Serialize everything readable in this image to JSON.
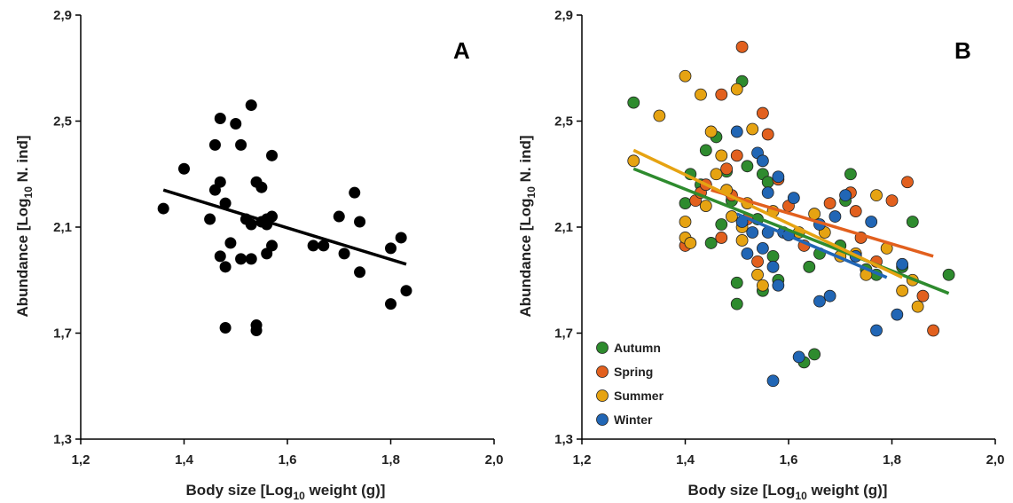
{
  "chart_data": [
    {
      "type": "scatter",
      "panel_label": "A",
      "xlabel_main": "Body size [Log",
      "xlabel_sub": "10",
      "xlabel_end": " weight (g)]",
      "ylabel_main": "Abundance [Log",
      "ylabel_sub": "10",
      "ylabel_end": " N. ind]",
      "xlim": [
        1.2,
        2.0
      ],
      "ylim": [
        1.3,
        2.9
      ],
      "x_ticks": [
        "1,2",
        "1,4",
        "1,6",
        "1,8",
        "2,0"
      ],
      "y_ticks": [
        "1,3",
        "1,7",
        "2,1",
        "2,5",
        "2,9"
      ],
      "series": [
        {
          "color": "#000000",
          "points": [
            [
              1.36,
              2.17
            ],
            [
              1.4,
              2.32
            ],
            [
              1.45,
              2.13
            ],
            [
              1.46,
              2.24
            ],
            [
              1.46,
              2.41
            ],
            [
              1.47,
              2.51
            ],
            [
              1.47,
              2.27
            ],
            [
              1.48,
              2.19
            ],
            [
              1.47,
              1.99
            ],
            [
              1.48,
              1.95
            ],
            [
              1.48,
              1.72
            ],
            [
              1.49,
              2.04
            ],
            [
              1.5,
              2.49
            ],
            [
              1.51,
              2.41
            ],
            [
              1.51,
              1.98
            ],
            [
              1.52,
              2.13
            ],
            [
              1.53,
              2.11
            ],
            [
              1.53,
              2.56
            ],
            [
              1.53,
              1.98
            ],
            [
              1.54,
              2.27
            ],
            [
              1.54,
              1.73
            ],
            [
              1.54,
              1.71
            ],
            [
              1.55,
              2.12
            ],
            [
              1.55,
              2.25
            ],
            [
              1.56,
              2.0
            ],
            [
              1.56,
              2.13
            ],
            [
              1.57,
              2.37
            ],
            [
              1.56,
              2.11
            ],
            [
              1.57,
              2.03
            ],
            [
              1.57,
              2.14
            ],
            [
              1.65,
              2.03
            ],
            [
              1.67,
              2.03
            ],
            [
              1.7,
              2.14
            ],
            [
              1.71,
              2.0
            ],
            [
              1.73,
              2.23
            ],
            [
              1.74,
              2.12
            ],
            [
              1.74,
              1.93
            ],
            [
              1.8,
              2.02
            ],
            [
              1.8,
              1.81
            ],
            [
              1.82,
              2.06
            ],
            [
              1.83,
              1.86
            ]
          ],
          "trend": [
            [
              1.36,
              2.24
            ],
            [
              1.83,
              1.96
            ]
          ]
        }
      ]
    },
    {
      "type": "scatter",
      "panel_label": "B",
      "xlabel_main": "Body size [Log",
      "xlabel_sub": "10",
      "xlabel_end": " weight (g)]",
      "ylabel_main": "Abundance [Log",
      "ylabel_sub": "10",
      "ylabel_end": " N. ind]",
      "xlim": [
        1.2,
        2.0
      ],
      "ylim": [
        1.3,
        2.9
      ],
      "x_ticks": [
        "1,2",
        "1,4",
        "1,6",
        "1,8",
        "2,0"
      ],
      "y_ticks": [
        "1,3",
        "1,7",
        "2,1",
        "2,5",
        "2,9"
      ],
      "series": [
        {
          "name": "Autumn",
          "color": "#2e8b2e",
          "points": [
            [
              1.3,
              2.57
            ],
            [
              1.4,
              2.19
            ],
            [
              1.41,
              2.3
            ],
            [
              1.43,
              2.26
            ],
            [
              1.44,
              2.39
            ],
            [
              1.45,
              2.04
            ],
            [
              1.46,
              2.44
            ],
            [
              1.47,
              2.11
            ],
            [
              1.48,
              2.31
            ],
            [
              1.49,
              2.2
            ],
            [
              1.5,
              1.81
            ],
            [
              1.5,
              1.89
            ],
            [
              1.51,
              2.65
            ],
            [
              1.52,
              2.33
            ],
            [
              1.54,
              2.13
            ],
            [
              1.55,
              2.3
            ],
            [
              1.55,
              1.86
            ],
            [
              1.56,
              2.27
            ],
            [
              1.57,
              1.99
            ],
            [
              1.58,
              1.9
            ],
            [
              1.63,
              1.59
            ],
            [
              1.64,
              1.95
            ],
            [
              1.65,
              1.62
            ],
            [
              1.7,
              2.03
            ],
            [
              1.72,
              2.3
            ],
            [
              1.75,
              1.94
            ],
            [
              1.77,
              1.92
            ],
            [
              1.82,
              1.95
            ],
            [
              1.84,
              2.12
            ],
            [
              1.91,
              1.92
            ],
            [
              1.71,
              2.2
            ],
            [
              1.66,
              2.0
            ]
          ],
          "trend": [
            [
              1.3,
              2.32
            ],
            [
              1.91,
              1.85
            ]
          ]
        },
        {
          "name": "Spring",
          "color": "#e2601e",
          "points": [
            [
              1.4,
              2.03
            ],
            [
              1.42,
              2.2
            ],
            [
              1.43,
              2.23
            ],
            [
              1.44,
              2.26
            ],
            [
              1.47,
              2.06
            ],
            [
              1.47,
              2.6
            ],
            [
              1.48,
              2.32
            ],
            [
              1.49,
              2.22
            ],
            [
              1.5,
              2.37
            ],
            [
              1.51,
              2.78
            ],
            [
              1.52,
              2.13
            ],
            [
              1.54,
              1.97
            ],
            [
              1.55,
              2.53
            ],
            [
              1.56,
              2.45
            ],
            [
              1.58,
              2.28
            ],
            [
              1.6,
              2.18
            ],
            [
              1.63,
              2.03
            ],
            [
              1.68,
              2.19
            ],
            [
              1.72,
              2.23
            ],
            [
              1.74,
              2.06
            ],
            [
              1.77,
              1.97
            ],
            [
              1.8,
              2.2
            ],
            [
              1.83,
              2.27
            ],
            [
              1.86,
              1.84
            ],
            [
              1.88,
              1.71
            ],
            [
              1.73,
              2.16
            ]
          ],
          "trend": [
            [
              1.45,
              2.24
            ],
            [
              1.88,
              1.99
            ]
          ]
        },
        {
          "name": "Summer",
          "color": "#e6a312",
          "points": [
            [
              1.3,
              2.35
            ],
            [
              1.35,
              2.52
            ],
            [
              1.4,
              2.67
            ],
            [
              1.4,
              2.12
            ],
            [
              1.4,
              2.06
            ],
            [
              1.41,
              2.04
            ],
            [
              1.43,
              2.6
            ],
            [
              1.44,
              2.18
            ],
            [
              1.45,
              2.46
            ],
            [
              1.46,
              2.3
            ],
            [
              1.47,
              2.37
            ],
            [
              1.48,
              2.24
            ],
            [
              1.49,
              2.14
            ],
            [
              1.5,
              2.62
            ],
            [
              1.51,
              2.1
            ],
            [
              1.51,
              2.05
            ],
            [
              1.52,
              2.19
            ],
            [
              1.53,
              2.47
            ],
            [
              1.54,
              1.92
            ],
            [
              1.55,
              1.88
            ],
            [
              1.57,
              2.16
            ],
            [
              1.62,
              2.08
            ],
            [
              1.65,
              2.15
            ],
            [
              1.7,
              1.99
            ],
            [
              1.73,
              2.0
            ],
            [
              1.75,
              1.92
            ],
            [
              1.77,
              2.22
            ],
            [
              1.79,
              2.02
            ],
            [
              1.82,
              1.86
            ],
            [
              1.84,
              1.9
            ],
            [
              1.85,
              1.8
            ],
            [
              1.67,
              2.08
            ]
          ],
          "trend": [
            [
              1.3,
              2.39
            ],
            [
              1.82,
              1.91
            ]
          ]
        },
        {
          "name": "Winter",
          "color": "#2166b5",
          "points": [
            [
              1.5,
              2.46
            ],
            [
              1.51,
              2.12
            ],
            [
              1.52,
              2.0
            ],
            [
              1.53,
              2.08
            ],
            [
              1.54,
              2.38
            ],
            [
              1.55,
              2.35
            ],
            [
              1.55,
              2.02
            ],
            [
              1.56,
              2.08
            ],
            [
              1.56,
              2.23
            ],
            [
              1.57,
              1.95
            ],
            [
              1.57,
              1.52
            ],
            [
              1.58,
              2.29
            ],
            [
              1.58,
              1.88
            ],
            [
              1.59,
              2.08
            ],
            [
              1.6,
              2.07
            ],
            [
              1.61,
              2.21
            ],
            [
              1.62,
              1.61
            ],
            [
              1.66,
              1.82
            ],
            [
              1.68,
              1.84
            ],
            [
              1.69,
              2.14
            ],
            [
              1.71,
              2.22
            ],
            [
              1.76,
              2.12
            ],
            [
              1.77,
              1.71
            ],
            [
              1.81,
              1.77
            ],
            [
              1.82,
              1.96
            ],
            [
              1.66,
              2.11
            ],
            [
              1.73,
              1.99
            ]
          ],
          "trend": [
            [
              1.5,
              2.15
            ],
            [
              1.79,
              1.91
            ]
          ]
        }
      ],
      "legend": [
        "Autumn",
        "Spring",
        "Summer",
        "Winter"
      ],
      "legend_placement": "bottom-left"
    }
  ]
}
